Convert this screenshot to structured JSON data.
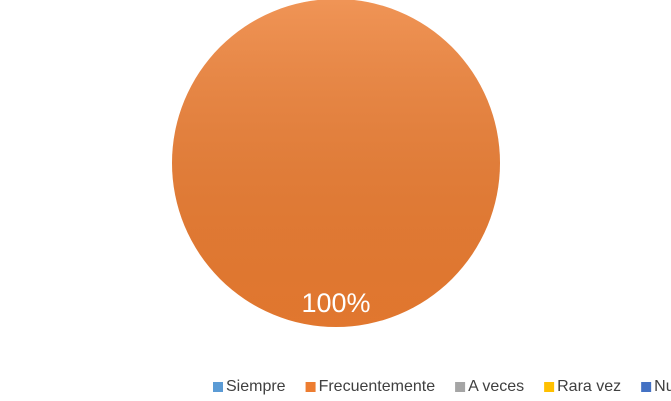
{
  "chart_data": {
    "type": "pie",
    "categories": [
      "Siempre",
      "Frecuentemente",
      "A veces",
      "Rara vez",
      "Nunca"
    ],
    "values": [
      0,
      100,
      0,
      0,
      0
    ],
    "value_labels": [
      null,
      "100%",
      null,
      null,
      null
    ],
    "colors": [
      "#5b9bd5",
      "#ed7d31",
      "#a5a5a5",
      "#ffc000",
      "#4472c4"
    ],
    "legend": "bottom"
  }
}
